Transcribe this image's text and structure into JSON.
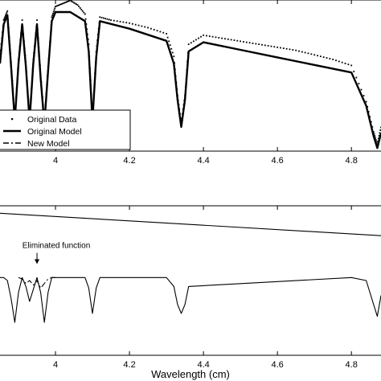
{
  "chart_data": [
    {
      "type": "line",
      "title": "",
      "xlabel": "",
      "ylabel": "",
      "xlim": [
        3.85,
        4.88
      ],
      "ylim": [
        0.0,
        1.0
      ],
      "xticks": [
        4.0,
        4.2,
        4.4,
        4.6,
        4.8
      ],
      "xtick_labels": [
        "4",
        "4.2",
        "4.4",
        "4.6",
        "4.8"
      ],
      "grid": false,
      "legend_position": "bottom-left",
      "series": [
        {
          "name": "Original Data",
          "style": "dotted",
          "x": [
            3.85,
            3.86,
            3.87,
            3.88,
            3.89,
            3.9,
            3.91,
            3.92,
            3.93,
            3.94,
            3.95,
            3.96,
            3.97,
            3.98,
            3.99,
            4.0,
            4.02,
            4.04,
            4.06,
            4.08,
            4.09,
            4.1,
            4.11,
            4.12,
            4.15,
            4.2,
            4.25,
            4.3,
            4.32,
            4.33,
            4.34,
            4.35,
            4.36,
            4.4,
            4.45,
            4.5,
            4.55,
            4.6,
            4.65,
            4.7,
            4.75,
            4.8,
            4.84,
            4.86,
            4.87,
            4.88
          ],
          "y": [
            0.62,
            0.86,
            0.92,
            0.58,
            0.22,
            0.6,
            0.86,
            0.58,
            0.21,
            0.6,
            0.86,
            0.5,
            0.2,
            0.55,
            0.88,
            0.95,
            0.97,
            0.99,
            0.96,
            0.9,
            0.7,
            0.22,
            0.65,
            0.88,
            0.86,
            0.84,
            0.81,
            0.77,
            0.62,
            0.36,
            0.18,
            0.36,
            0.7,
            0.76,
            0.74,
            0.72,
            0.7,
            0.68,
            0.66,
            0.63,
            0.6,
            0.56,
            0.32,
            0.12,
            0.04,
            0.15
          ]
        },
        {
          "name": "Original Model",
          "style": "solid",
          "x": [
            3.85,
            3.86,
            3.87,
            3.88,
            3.89,
            3.9,
            3.91,
            3.92,
            3.93,
            3.94,
            3.95,
            3.96,
            3.97,
            3.98,
            3.99,
            4.0,
            4.04,
            4.08,
            4.09,
            4.1,
            4.11,
            4.12,
            4.2,
            4.3,
            4.32,
            4.33,
            4.34,
            4.35,
            4.36,
            4.4,
            4.5,
            4.6,
            4.7,
            4.8,
            4.84,
            4.86,
            4.87,
            4.88
          ],
          "y": [
            0.58,
            0.84,
            0.9,
            0.56,
            0.2,
            0.58,
            0.84,
            0.56,
            0.2,
            0.58,
            0.84,
            0.48,
            0.18,
            0.53,
            0.86,
            0.92,
            0.92,
            0.86,
            0.66,
            0.2,
            0.62,
            0.86,
            0.81,
            0.73,
            0.58,
            0.34,
            0.16,
            0.34,
            0.66,
            0.72,
            0.67,
            0.62,
            0.57,
            0.52,
            0.3,
            0.1,
            0.02,
            0.12
          ]
        },
        {
          "name": "New Model",
          "style": "dash-dot",
          "x": [
            3.85,
            3.86,
            3.87,
            3.88,
            3.89,
            3.9,
            3.91,
            3.92,
            3.93,
            3.94,
            3.95,
            3.96,
            3.97,
            3.98,
            3.99,
            4.0,
            4.04,
            4.08,
            4.09,
            4.1,
            4.11,
            4.12,
            4.2,
            4.3,
            4.32,
            4.33,
            4.34,
            4.35,
            4.36,
            4.4,
            4.5,
            4.6,
            4.7,
            4.8,
            4.84,
            4.86,
            4.87,
            4.88
          ],
          "y": [
            0.58,
            0.84,
            0.9,
            0.56,
            0.2,
            0.58,
            0.84,
            0.56,
            0.2,
            0.58,
            0.84,
            0.48,
            0.18,
            0.53,
            0.86,
            0.92,
            0.92,
            0.86,
            0.66,
            0.2,
            0.62,
            0.86,
            0.81,
            0.73,
            0.58,
            0.34,
            0.16,
            0.34,
            0.66,
            0.72,
            0.67,
            0.62,
            0.57,
            0.52,
            0.3,
            0.1,
            0.02,
            0.12
          ]
        }
      ]
    },
    {
      "type": "line",
      "title": "",
      "xlabel": "Wavelength (cm)",
      "ylabel": "",
      "xlim": [
        3.85,
        4.88
      ],
      "ylim": [
        0.0,
        1.0
      ],
      "xticks": [
        4.0,
        4.2,
        4.4,
        4.6,
        4.8
      ],
      "xtick_labels": [
        "4",
        "4.2",
        "4.4",
        "4.6",
        "4.8"
      ],
      "grid": false,
      "annotations": [
        {
          "text": "Eliminated function",
          "x": 3.95,
          "y": 0.61
        }
      ],
      "series": [
        {
          "name": "",
          "style": "solid",
          "x": [
            3.85,
            4.88
          ],
          "y": [
            0.95,
            0.8
          ]
        },
        {
          "name": "",
          "style": "solid",
          "x": [
            3.85,
            3.86,
            3.87,
            3.88,
            3.89,
            3.9,
            3.91,
            3.92,
            3.93,
            3.94,
            3.95,
            3.96,
            3.97,
            3.98,
            3.99,
            4.0,
            4.08,
            4.09,
            4.1,
            4.11,
            4.12,
            4.3,
            4.32,
            4.33,
            4.34,
            4.35,
            4.36,
            4.8,
            4.84,
            4.85,
            4.86,
            4.87,
            4.88
          ],
          "y": [
            0.52,
            0.52,
            0.5,
            0.38,
            0.22,
            0.42,
            0.52,
            0.46,
            0.36,
            0.44,
            0.52,
            0.42,
            0.22,
            0.42,
            0.52,
            0.52,
            0.52,
            0.45,
            0.28,
            0.45,
            0.52,
            0.52,
            0.46,
            0.34,
            0.28,
            0.34,
            0.46,
            0.52,
            0.5,
            0.42,
            0.34,
            0.26,
            0.4
          ]
        },
        {
          "name": "",
          "style": "dash-dot",
          "x": [
            3.9,
            3.91,
            3.92,
            3.93,
            3.94,
            3.95,
            3.96,
            3.97,
            3.98,
            3.99,
            4.0
          ],
          "y": [
            0.52,
            0.51,
            0.48,
            0.5,
            0.47,
            0.5,
            0.45,
            0.48,
            0.51,
            0.52,
            0.52
          ]
        }
      ]
    }
  ]
}
